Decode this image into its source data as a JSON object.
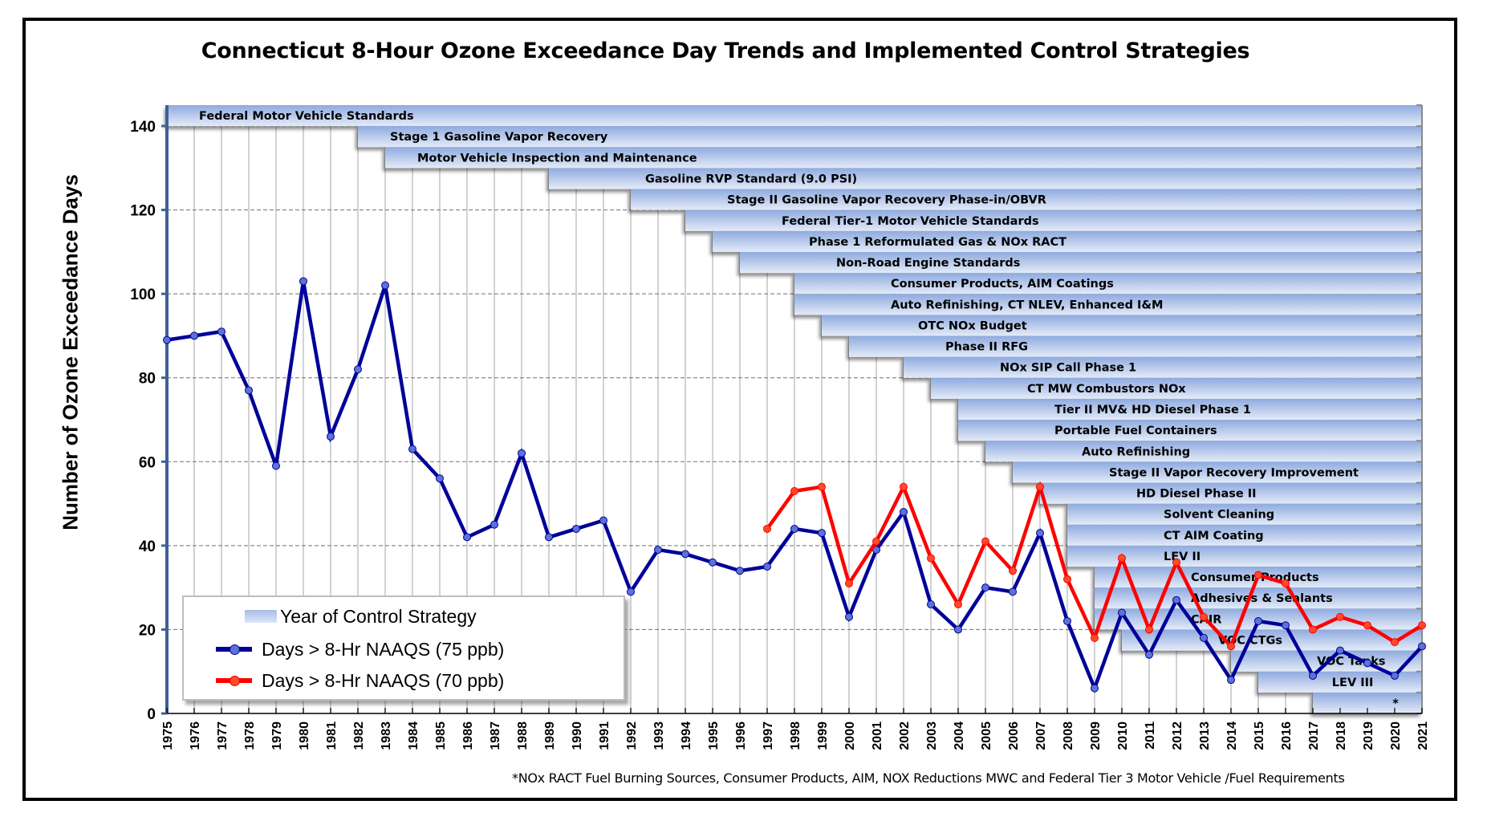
{
  "chart_data": {
    "type": "line",
    "title": "Connecticut  8-Hour Ozone Exceedance Day Trends and Implemented Control Strategies",
    "xlabel": "",
    "ylabel": "Number of Ozone Exceedance Days",
    "ylim": [
      0,
      145
    ],
    "yticks": [
      0,
      20,
      40,
      60,
      80,
      100,
      120,
      140
    ],
    "grid": true,
    "legend_position": "bottom-left",
    "x": [
      1975,
      1976,
      1977,
      1978,
      1979,
      1980,
      1981,
      1982,
      1983,
      1984,
      1985,
      1986,
      1987,
      1988,
      1989,
      1990,
      1991,
      1992,
      1993,
      1994,
      1995,
      1996,
      1997,
      1998,
      1999,
      2000,
      2001,
      2002,
      2003,
      2004,
      2005,
      2006,
      2007,
      2008,
      2009,
      2010,
      2011,
      2012,
      2013,
      2014,
      2015,
      2016,
      2017,
      2018,
      2019,
      2020,
      2021
    ],
    "xtick_labels": [
      "1975",
      "1976",
      "1977",
      "1978",
      "1979",
      "1980",
      "1981",
      "1982",
      "1983",
      "1984",
      "1985",
      "1986",
      "1987",
      "1988",
      "1989",
      "1990",
      "1991",
      "1992",
      "1993",
      "1994",
      "1995",
      "1996",
      "1997",
      "1998",
      "1999",
      "2000",
      "2001",
      "2002",
      "2003",
      "2004",
      "2005",
      "2006",
      "2007",
      "2008",
      "2009",
      "2010",
      "2011",
      "2012",
      "2013",
      "2014",
      "2015",
      "2016",
      "2017",
      "2018",
      "2019",
      "2020",
      "2021"
    ],
    "series": [
      {
        "name": "Days > 8-Hr NAAQS  (75 ppb)",
        "color": "#000099",
        "marker_color": "#5b72d6",
        "start_year": 1975,
        "values": [
          89,
          90,
          91,
          77,
          59,
          103,
          66,
          82,
          102,
          63,
          56,
          42,
          45,
          62,
          42,
          44,
          46,
          29,
          39,
          38,
          36,
          34,
          35,
          44,
          43,
          23,
          39,
          48,
          26,
          20,
          30,
          29,
          43,
          22,
          6,
          24,
          14,
          27,
          18,
          8,
          22,
          21,
          9,
          15,
          12,
          9,
          16
        ]
      },
      {
        "name": "Days > 8-Hr NAAQS  (70 ppb)",
        "color": "#ff0000",
        "marker_color": "#ff4a2a",
        "start_year": 1997,
        "values": [
          44,
          53,
          54,
          31,
          41,
          54,
          37,
          26,
          41,
          34,
          54,
          32,
          18,
          37,
          20,
          36,
          23,
          16,
          33,
          31,
          20,
          23,
          21,
          17,
          21
        ]
      }
    ],
    "control_strategies": {
      "legend_label": "Year of Control Strategy",
      "end_year": 2021,
      "items": [
        {
          "label": "Federal Motor Vehicle Standards",
          "year": 1975
        },
        {
          "label": "Stage 1 Gasoline Vapor Recovery",
          "year": 1982
        },
        {
          "label": "Motor Vehicle Inspection and Maintenance",
          "year": 1983
        },
        {
          "label": "Gasoline RVP Standard (9.0 PSI)",
          "year": 1989
        },
        {
          "label": "Stage II Gasoline Vapor Recovery Phase-in/OBVR",
          "year": 1992
        },
        {
          "label": "Federal Tier-1 Motor Vehicle Standards",
          "year": 1994
        },
        {
          "label": "Phase 1 Reformulated Gas & NOx RACT",
          "year": 1995
        },
        {
          "label": "Non-Road Engine Standards",
          "year": 1996
        },
        {
          "label": "Consumer  Products, AIM Coatings",
          "year": 1998
        },
        {
          "label": "Auto Refinishing, CT NLEV, Enhanced I&M",
          "year": 1998
        },
        {
          "label": "OTC NOx Budget",
          "year": 1999
        },
        {
          "label": "Phase II RFG",
          "year": 2000
        },
        {
          "label": "NOx SIP Call Phase 1",
          "year": 2002
        },
        {
          "label": "CT MW Combustors  NOx",
          "year": 2003
        },
        {
          "label": "Tier II MV& HD Diesel Phase 1",
          "year": 2004
        },
        {
          "label": "Portable Fuel Containers",
          "year": 2004
        },
        {
          "label": "Auto Refinishing",
          "year": 2005
        },
        {
          "label": "Stage II Vapor Recovery Improvement",
          "year": 2006
        },
        {
          "label": "HD Diesel Phase II",
          "year": 2007
        },
        {
          "label": "Solvent Cleaning",
          "year": 2008
        },
        {
          "label": "CT AIM Coating",
          "year": 2008
        },
        {
          "label": "LEV II",
          "year": 2008
        },
        {
          "label": "Consumer Products",
          "year": 2009
        },
        {
          "label": "Adhesives & Sealants",
          "year": 2009
        },
        {
          "label": "CAIR",
          "year": 2009
        },
        {
          "label": "VOC CTGs",
          "year": 2010
        },
        {
          "label": "VOC Tanks",
          "year": 2014
        },
        {
          "label": "LEV III",
          "year": 2015
        },
        {
          "label": "*",
          "year": 2017
        }
      ]
    },
    "footnote": "*NOx RACT Fuel Burning Sources, Consumer Products, AIM, NOX Reductions MWC and Federal Tier 3 Motor Vehicle /Fuel Requirements"
  },
  "legend": {
    "control_label": "Year of Control Strategy",
    "series75_label": "Days > 8-Hr NAAQS  (75 ppb)",
    "series70_label": "Days > 8-Hr NAAQS  (70 ppb)"
  },
  "colors": {
    "series75": "#000099",
    "series70": "#ff0000",
    "bar_top": "#93afe0",
    "bar_bottom": "#e1e9f7",
    "axis": "#3d6196"
  }
}
